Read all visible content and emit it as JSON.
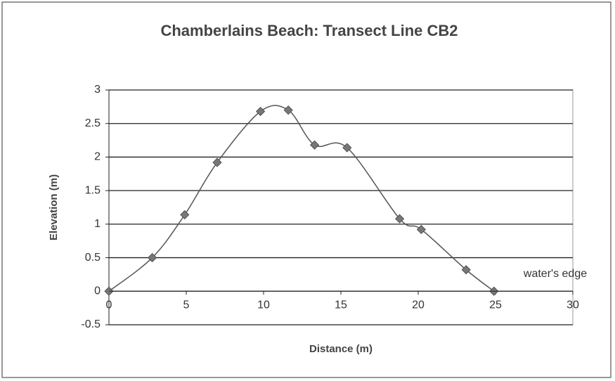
{
  "chart_data": {
    "type": "scatter",
    "title": "Chamberlains Beach: Transect Line CB2",
    "x_label": "Distance (m)",
    "y_label": "Elevation (m)",
    "x": [
      0,
      2.8,
      4.9,
      7.0,
      9.8,
      11.6,
      13.3,
      15.4,
      18.8,
      20.2,
      23.1,
      24.9
    ],
    "values": [
      0,
      0.5,
      1.14,
      1.92,
      2.68,
      2.7,
      2.18,
      2.14,
      1.08,
      0.92,
      0.32,
      0
    ],
    "color": "#777777",
    "line_color": "#555555",
    "smooth": true,
    "xlim": [
      0,
      30
    ],
    "xticks": [
      0,
      5,
      10,
      15,
      20,
      25,
      30
    ],
    "ylim": [
      -0.5,
      3
    ],
    "yticks": [
      -0.5,
      0,
      0.5,
      1,
      1.5,
      2,
      2.5,
      3
    ],
    "grid": true,
    "annotation": "water's edge"
  }
}
